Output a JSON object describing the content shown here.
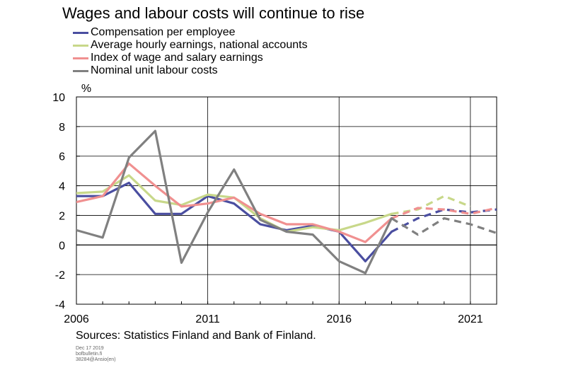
{
  "chart_data": {
    "type": "line",
    "title": "Wages and labour costs will continue to rise",
    "ylabel": "%",
    "ylim": [
      -4,
      10
    ],
    "yticks": [
      -4,
      -2,
      0,
      2,
      4,
      6,
      8,
      10
    ],
    "xlim": [
      2006,
      2022
    ],
    "xticks": [
      2006,
      2011,
      2016,
      2021
    ],
    "grid": true,
    "legend_position": "top-left",
    "x": [
      2006,
      2007,
      2008,
      2009,
      2010,
      2011,
      2012,
      2013,
      2014,
      2015,
      2016,
      2017,
      2018,
      2019,
      2020,
      2021,
      2022
    ],
    "forecast_start": 2018,
    "series": [
      {
        "name": "Compensation per employee",
        "color": "#4a4ea0",
        "values": [
          3.3,
          3.3,
          4.2,
          2.1,
          2.1,
          3.3,
          2.8,
          1.4,
          1.0,
          1.3,
          0.9,
          -1.1,
          0.9,
          1.8,
          2.4,
          2.2,
          2.4
        ]
      },
      {
        "name": "Average hourly earnings, national accounts",
        "color": "#c8d88a",
        "values": [
          3.5,
          3.6,
          4.7,
          3.0,
          2.7,
          3.4,
          3.2,
          1.8,
          0.9,
          1.2,
          1.0,
          1.5,
          2.1,
          2.4,
          3.3,
          2.6,
          null
        ]
      },
      {
        "name": "Index of wage and salary earnings",
        "color": "#f09090",
        "values": [
          2.9,
          3.3,
          5.5,
          4.0,
          2.6,
          2.8,
          3.2,
          2.1,
          1.4,
          1.4,
          0.9,
          0.2,
          1.8,
          2.5,
          2.4,
          2.1,
          2.5
        ]
      },
      {
        "name": "Nominal unit labour costs",
        "color": "#808080",
        "values": [
          1.0,
          0.5,
          5.9,
          7.7,
          -1.2,
          2.2,
          5.1,
          1.7,
          0.9,
          0.7,
          -1.1,
          -1.9,
          1.8,
          0.7,
          1.8,
          1.4,
          0.8
        ]
      }
    ]
  },
  "footer": {
    "sources": "Sources: Statistics Finland and Bank of Finland.",
    "date": "Dec 17 2019",
    "site": "bofbulletin.fi",
    "code": "38284@Ansio(en)"
  }
}
